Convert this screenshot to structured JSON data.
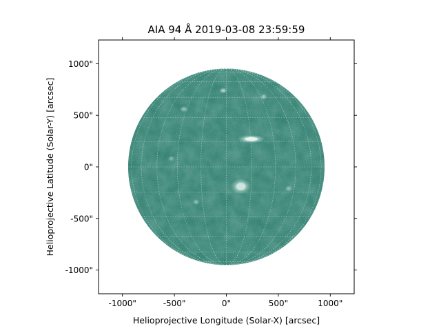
{
  "title": "AIA 94 Å 2019-03-08 23:59:59",
  "xlabel": "Helioprojective Longitude (Solar-X) [arcsec]",
  "ylabel": "Helioprojective Latitude (Solar-Y) [arcsec]",
  "x_ticks": [
    {
      "value": -1000,
      "label": "-1000\""
    },
    {
      "value": -500,
      "label": "-500\""
    },
    {
      "value": 0,
      "label": "0\""
    },
    {
      "value": 500,
      "label": "500\""
    },
    {
      "value": 1000,
      "label": "1000\""
    }
  ],
  "y_ticks": [
    {
      "value": 1000,
      "label": "1000\""
    },
    {
      "value": 500,
      "label": "500\""
    },
    {
      "value": 0,
      "label": "0\""
    },
    {
      "value": -500,
      "label": "-500\""
    },
    {
      "value": -1000,
      "label": "-1000\""
    }
  ],
  "xlim": [
    -1230,
    1230
  ],
  "ylim": [
    -1230,
    1230
  ],
  "solar_radius_arcsec": 945,
  "grid_lon_lat_step_deg": 15,
  "colors": {
    "disk": "#2c7a6a",
    "disk_dark": "#1f5e51",
    "bright_region": "#e9f5f1",
    "grid": "#cfe4de"
  },
  "features": [
    {
      "name": "active-region-north",
      "x": 240,
      "y": 270,
      "rx": 60,
      "ry": 18,
      "brightness": 1.0
    },
    {
      "name": "active-region-south",
      "x": 140,
      "y": -190,
      "rx": 45,
      "ry": 35,
      "brightness": 0.85
    },
    {
      "name": "bright-point-1",
      "x": -30,
      "y": 740,
      "rx": 18,
      "ry": 14,
      "brightness": 0.6
    },
    {
      "name": "bright-point-2",
      "x": -410,
      "y": 560,
      "rx": 20,
      "ry": 14,
      "brightness": 0.45
    },
    {
      "name": "bright-point-3",
      "x": 360,
      "y": 680,
      "rx": 16,
      "ry": 14,
      "brightness": 0.45
    },
    {
      "name": "bright-point-4",
      "x": -290,
      "y": -340,
      "rx": 16,
      "ry": 14,
      "brightness": 0.4
    },
    {
      "name": "bright-point-5",
      "x": -530,
      "y": 80,
      "rx": 16,
      "ry": 14,
      "brightness": 0.35
    },
    {
      "name": "bright-point-6",
      "x": 600,
      "y": -210,
      "rx": 18,
      "ry": 14,
      "brightness": 0.4
    }
  ]
}
